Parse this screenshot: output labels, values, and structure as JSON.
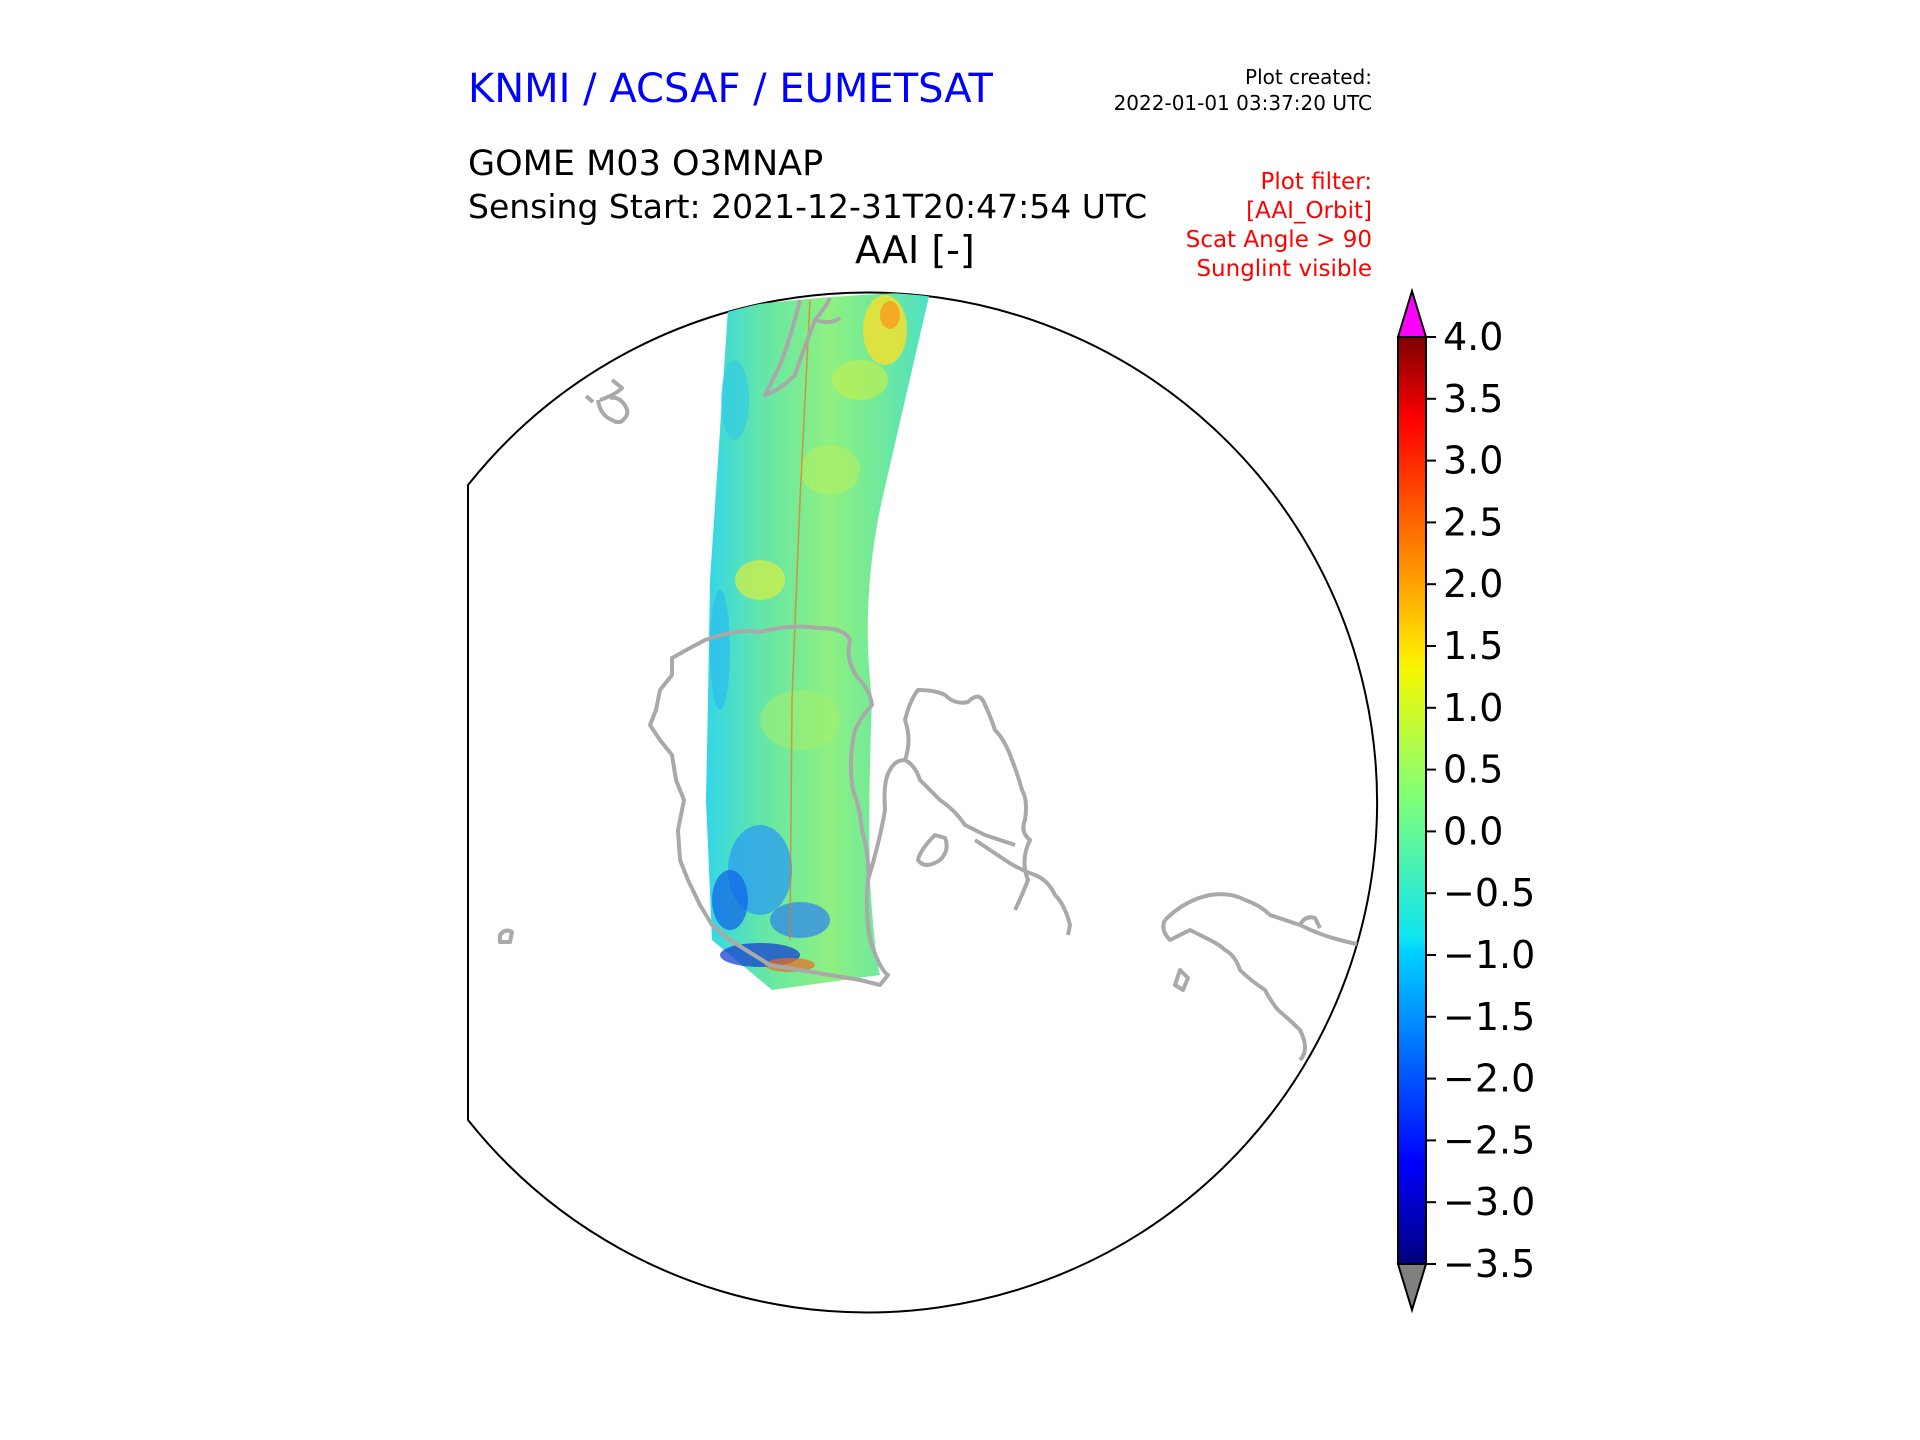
{
  "header": {
    "organization": "KNMI / ACSAF / EUMETSAT",
    "plot_created_label": "Plot created:",
    "plot_created_time": "2022-01-01 03:37:20 UTC",
    "product": "GOME M03 O3MNAP",
    "sensing_start": "Sensing Start: 2021-12-31T20:47:54 UTC",
    "parameter": "AAI [-]",
    "plot_filter": [
      "Plot filter:",
      "[AAI_Orbit]",
      "Scat Angle > 90",
      "Sunglint visible"
    ]
  },
  "colors": {
    "title_blue": "#0000ff",
    "filter_red": "#ff0000",
    "coastline": "#a9a9a9",
    "over_max": "#ff00ff",
    "under_min": "#808080",
    "dominant_swath": "#5ce6a0"
  },
  "map": {
    "projection": "orthographic",
    "coastlines": true,
    "variable": "AAI"
  },
  "colorbar": {
    "colormap": "jet",
    "min": -3.5,
    "max": 4.0,
    "extend": "both",
    "tick_labels": [
      "4.0",
      "3.5",
      "3.0",
      "2.5",
      "2.0",
      "1.5",
      "1.0",
      "0.5",
      "0.0",
      "−0.5",
      "−1.0",
      "−1.5",
      "−2.0",
      "−2.5",
      "−3.0",
      "−3.5"
    ]
  }
}
